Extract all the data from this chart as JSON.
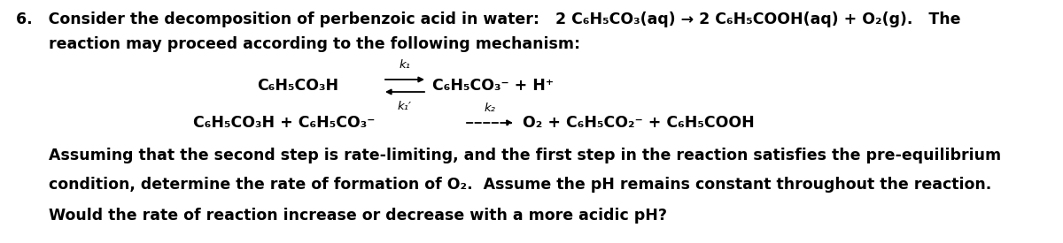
{
  "figsize": [
    12.0,
    2.75
  ],
  "dpi": 100,
  "background_color": "#ffffff",
  "font_color": "#000000",
  "line1": "6.   Consider the decomposition of perbenzoic acid in water:   2 C₆H₅CO₃(aq) → 2 C₆H₅COOH(aq) + O₂(g).   The",
  "line2": "reaction may proceed according to the following mechanism:",
  "line3": "Assuming that the second step is rate-limiting, and the first step in the reaction satisfies the pre-equilibrium",
  "line4": "condition, determine the rate of formation of O₂.  Assume the pH remains constant throughout the reaction.",
  "line5": "Would the rate of reaction increase or decrease with a more acidic pH?",
  "eq1_left": "C₆H₅CO₃H",
  "eq1_right": "C₆H₅CO₃⁻ + H⁺",
  "eq1_k1": "k₁",
  "eq1_k1r": "k₁′",
  "eq2_left": "C₆H₅CO₃H + C₆H₅CO₃⁻",
  "eq2_right": "O₂ + C₆H₅CO₂⁻ + C₆H₅COOH",
  "eq2_k2": "k₂",
  "fontsize_main": 12.5,
  "fontsize_eq": 12.5,
  "fontsize_k": 9.5
}
